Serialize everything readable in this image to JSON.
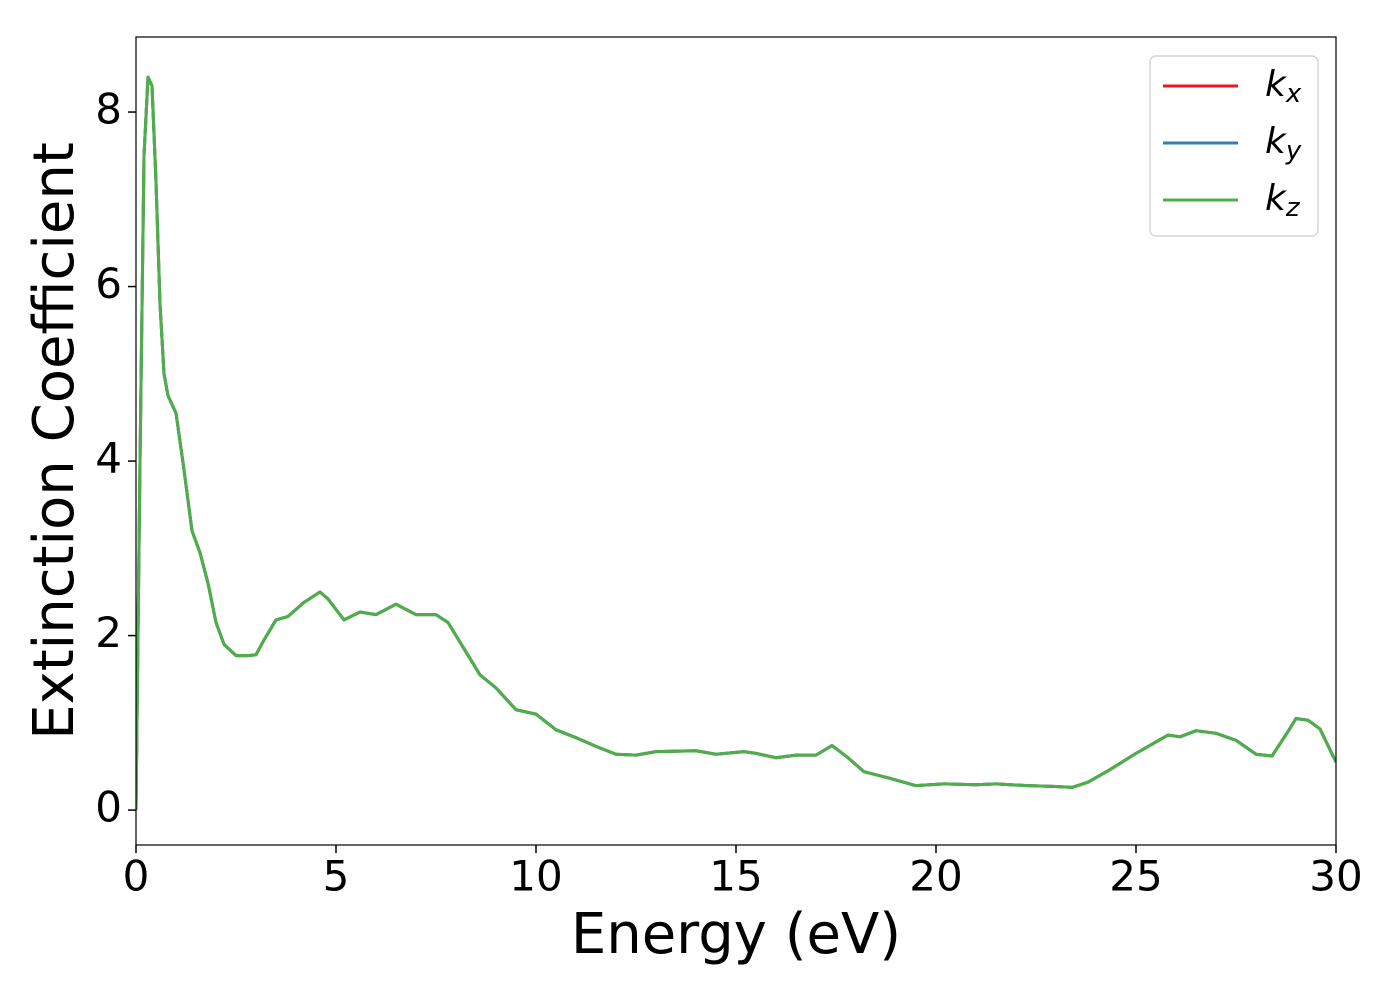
{
  "chart_data": {
    "type": "line",
    "xlabel": "Energy (eV)",
    "ylabel": "Extinction Coefficient",
    "xlim": [
      0,
      30
    ],
    "xticks": [
      0,
      5,
      10,
      15,
      20,
      25,
      30
    ],
    "ylim": [
      -0.4,
      8.86
    ],
    "yticks": [
      0,
      2,
      4,
      6,
      8
    ],
    "legend": "upper right",
    "x": [
      0,
      0.1,
      0.2,
      0.3,
      0.4,
      0.5,
      0.6,
      0.7,
      0.8,
      1.0,
      1.2,
      1.4,
      1.6,
      1.8,
      2.0,
      2.2,
      2.5,
      2.8,
      3.0,
      3.2,
      3.5,
      3.8,
      4.2,
      4.6,
      4.8,
      5.2,
      5.6,
      6.0,
      6.5,
      7.0,
      7.5,
      7.8,
      8.2,
      8.6,
      9.0,
      9.5,
      10.0,
      10.5,
      11.0,
      11.5,
      12.0,
      12.5,
      13.0,
      14.0,
      14.5,
      15.2,
      15.5,
      16.0,
      16.5,
      17.0,
      17.4,
      17.8,
      18.2,
      18.8,
      19.5,
      20.2,
      21.0,
      21.5,
      22.3,
      23.0,
      23.4,
      23.8,
      24.3,
      25.0,
      25.8,
      26.1,
      26.5,
      27.0,
      27.5,
      28.0,
      28.4,
      28.8,
      29.0,
      29.3,
      29.6,
      30
    ],
    "series": [
      {
        "name": "k_x",
        "color": "#e41a1c",
        "values": [
          0,
          4,
          7.5,
          8.4,
          8.3,
          7.2,
          5.8,
          5.0,
          4.75,
          4.55,
          3.9,
          3.2,
          2.95,
          2.6,
          2.15,
          1.9,
          1.77,
          1.77,
          1.78,
          1.95,
          2.18,
          2.22,
          2.38,
          2.5,
          2.42,
          2.18,
          2.27,
          2.24,
          2.36,
          2.24,
          2.24,
          2.15,
          1.85,
          1.55,
          1.4,
          1.15,
          1.1,
          0.92,
          0.83,
          0.73,
          0.64,
          0.63,
          0.67,
          0.68,
          0.64,
          0.67,
          0.65,
          0.6,
          0.63,
          0.63,
          0.74,
          0.6,
          0.44,
          0.37,
          0.28,
          0.3,
          0.29,
          0.3,
          0.28,
          0.27,
          0.26,
          0.32,
          0.45,
          0.65,
          0.86,
          0.84,
          0.91,
          0.88,
          0.8,
          0.64,
          0.62,
          0.9,
          1.05,
          1.03,
          0.93,
          0.55
        ]
      },
      {
        "name": "k_y",
        "color": "#377eb8",
        "values": [
          0,
          4,
          7.5,
          8.4,
          8.3,
          7.2,
          5.8,
          5.0,
          4.75,
          4.55,
          3.9,
          3.2,
          2.95,
          2.6,
          2.15,
          1.9,
          1.77,
          1.77,
          1.78,
          1.95,
          2.18,
          2.22,
          2.38,
          2.5,
          2.42,
          2.18,
          2.27,
          2.24,
          2.36,
          2.24,
          2.24,
          2.15,
          1.85,
          1.55,
          1.4,
          1.15,
          1.1,
          0.92,
          0.83,
          0.73,
          0.64,
          0.63,
          0.67,
          0.68,
          0.64,
          0.67,
          0.65,
          0.6,
          0.63,
          0.63,
          0.74,
          0.6,
          0.44,
          0.37,
          0.28,
          0.3,
          0.29,
          0.3,
          0.28,
          0.27,
          0.26,
          0.32,
          0.45,
          0.65,
          0.86,
          0.84,
          0.91,
          0.88,
          0.8,
          0.64,
          0.62,
          0.9,
          1.05,
          1.03,
          0.93,
          0.55
        ]
      },
      {
        "name": "k_z",
        "color": "#4daf4a",
        "values": [
          0,
          4,
          7.5,
          8.4,
          8.3,
          7.2,
          5.8,
          5.0,
          4.75,
          4.55,
          3.9,
          3.2,
          2.95,
          2.6,
          2.15,
          1.9,
          1.77,
          1.77,
          1.78,
          1.95,
          2.18,
          2.22,
          2.38,
          2.5,
          2.42,
          2.18,
          2.27,
          2.24,
          2.36,
          2.24,
          2.24,
          2.15,
          1.85,
          1.55,
          1.4,
          1.15,
          1.1,
          0.92,
          0.83,
          0.73,
          0.64,
          0.63,
          0.67,
          0.68,
          0.64,
          0.67,
          0.65,
          0.6,
          0.63,
          0.63,
          0.74,
          0.6,
          0.44,
          0.37,
          0.28,
          0.3,
          0.29,
          0.3,
          0.28,
          0.27,
          0.26,
          0.32,
          0.45,
          0.65,
          0.86,
          0.84,
          0.91,
          0.88,
          0.8,
          0.64,
          0.62,
          0.9,
          1.05,
          1.03,
          0.93,
          0.55
        ]
      }
    ]
  }
}
